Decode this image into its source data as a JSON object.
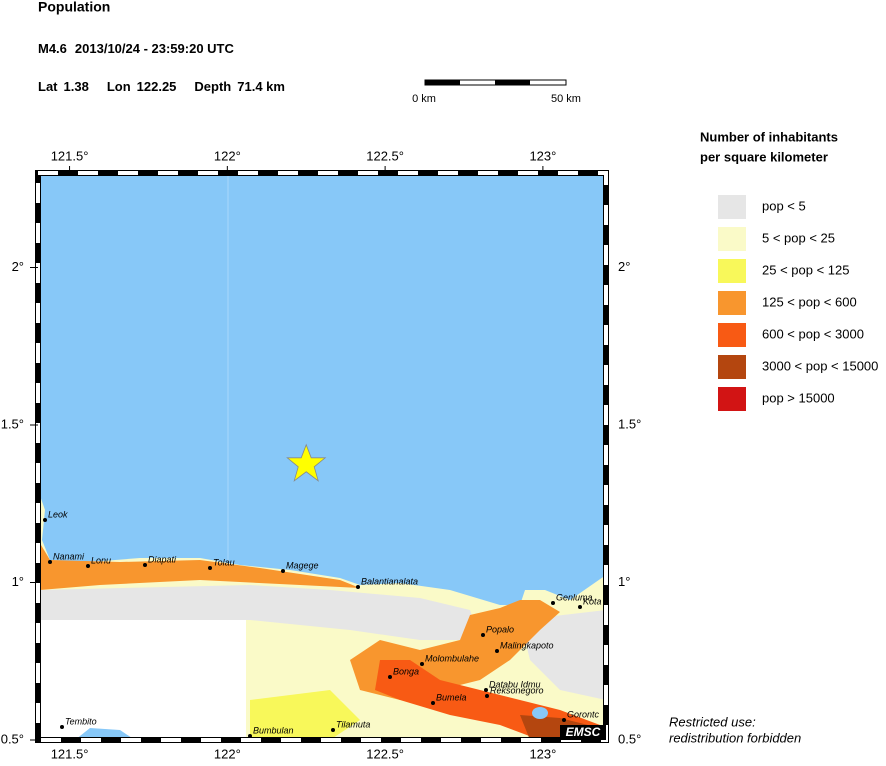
{
  "header": {
    "title": "Population",
    "magnitude": "M4.6",
    "time": "2013/10/24 - 23:59:20 UTC",
    "lat_label": "Lat",
    "lat": 1.38,
    "lon_label": "Lon",
    "lon": 122.25,
    "depth_label": "Depth",
    "depth": "71.4 km"
  },
  "scale_bar": {
    "start": "0 km",
    "end": "50 km"
  },
  "map": {
    "lonlim": [
      121.4,
      123.2
    ],
    "latlim": [
      0.5,
      2.3
    ],
    "lon_ticks": [
      {
        "value": 121.5,
        "label": "121.5°"
      },
      {
        "value": 122,
        "label": "122°"
      },
      {
        "value": 122.5,
        "label": "122.5°"
      },
      {
        "value": 123,
        "label": "123°"
      }
    ],
    "lat_ticks": [
      {
        "value": 0.5,
        "label": "0.5°"
      },
      {
        "value": 1,
        "label": "1°"
      },
      {
        "value": 1.5,
        "label": "1.5°"
      },
      {
        "value": 2,
        "label": "2°"
      }
    ],
    "cities": [
      "Leok",
      "Nanami",
      "Lonu",
      "Diapati",
      "Tolau",
      "Magege",
      "Balantianalata",
      "Genluma",
      "Kota",
      "Popalo",
      "Malingkapoto",
      "Molombulahe",
      "Bonga",
      "Databu Idmu",
      "Reksonegoro",
      "Bumela",
      "Tembito",
      "Tilamuta",
      "Bumbulan",
      "Gorontc"
    ],
    "badge": "EMSC"
  },
  "legend": {
    "title_lines": [
      "Number of inhabitants",
      "per square kilometer"
    ],
    "items": [
      {
        "label": "pop < 5",
        "color": "#e6e6e6"
      },
      {
        "label": "5 < pop < 25",
        "color": "#fafac8"
      },
      {
        "label": "25 < pop < 125",
        "color": "#f8f85a"
      },
      {
        "label": "125 < pop < 600",
        "color": "#f8962e"
      },
      {
        "label": "600 < pop < 3000",
        "color": "#f85a14"
      },
      {
        "label": "3000 < pop < 15000",
        "color": "#b4460f"
      },
      {
        "label": "pop > 15000",
        "color": "#d21414"
      }
    ]
  },
  "footer": [
    "Restricted use:",
    "redistribution forbidden"
  ]
}
